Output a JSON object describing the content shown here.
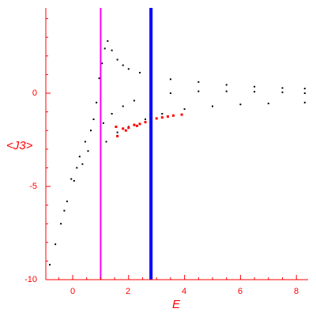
{
  "chart_data": {
    "type": "scatter",
    "xlabel": "E",
    "ylabel": "<J3>",
    "xlim": [
      -0.9,
      8.4
    ],
    "ylim": [
      -10,
      4.5
    ],
    "x_ticks": [
      0,
      2,
      4,
      6,
      8
    ],
    "y_ticks": [
      0,
      -5,
      -10
    ],
    "x_tick_labels": [
      "0",
      "2",
      "4",
      "6",
      "8"
    ],
    "y_tick_labels": [
      "0",
      "-5",
      "-10"
    ],
    "grid": false,
    "colors": {
      "axis": "#ff0000",
      "points": "#000000",
      "highlight": "#ff0000",
      "line_1": "#ff00ff",
      "line_2": "#0000ff"
    },
    "vertical_lines": [
      {
        "x": 1.0,
        "color": "#ff00ff"
      },
      {
        "x": 2.8,
        "color": "#0000ff"
      }
    ],
    "series": [
      {
        "color": "#000000",
        "points": [
          [
            -0.82,
            -9.2
          ],
          [
            -0.62,
            -8.1
          ],
          [
            -0.42,
            -7.0
          ],
          [
            -0.3,
            -6.3
          ],
          [
            -0.2,
            -5.8
          ],
          [
            -0.05,
            -4.6
          ],
          [
            0.05,
            -4.7
          ],
          [
            0.15,
            -4.0
          ],
          [
            0.25,
            -3.4
          ],
          [
            0.35,
            -3.8
          ],
          [
            0.45,
            -2.6
          ],
          [
            0.55,
            -3.1
          ],
          [
            0.65,
            -2.0
          ],
          [
            0.75,
            -1.4
          ],
          [
            0.85,
            -0.5
          ],
          [
            0.95,
            0.8
          ],
          [
            1.05,
            1.6
          ],
          [
            1.15,
            2.4
          ],
          [
            1.25,
            2.8
          ],
          [
            1.4,
            2.3
          ],
          [
            1.6,
            1.8
          ],
          [
            1.8,
            1.5
          ],
          [
            2.0,
            1.3
          ],
          [
            2.4,
            1.1
          ],
          [
            2.8,
            0.9
          ],
          [
            3.5,
            0.75
          ],
          [
            4.5,
            0.6
          ],
          [
            5.5,
            0.45
          ],
          [
            6.5,
            0.35
          ],
          [
            7.5,
            0.28
          ],
          [
            8.3,
            0.25
          ],
          [
            1.1,
            -1.6
          ],
          [
            1.4,
            -1.1
          ],
          [
            1.8,
            -0.7
          ],
          [
            2.2,
            -0.4
          ],
          [
            2.8,
            -0.15
          ],
          [
            3.5,
            0.0
          ],
          [
            4.5,
            0.1
          ],
          [
            5.5,
            0.1
          ],
          [
            6.5,
            0.08
          ],
          [
            7.5,
            0.05
          ],
          [
            8.3,
            0.0
          ],
          [
            1.2,
            -2.6
          ],
          [
            1.6,
            -2.1
          ],
          [
            2.0,
            -1.8
          ],
          [
            2.6,
            -1.4
          ],
          [
            3.2,
            -1.1
          ],
          [
            4.0,
            -0.85
          ],
          [
            5.0,
            -0.7
          ],
          [
            6.0,
            -0.6
          ],
          [
            7.0,
            -0.55
          ],
          [
            8.3,
            -0.5
          ]
        ]
      },
      {
        "color": "#ff0000",
        "points": [
          [
            1.55,
            -1.8
          ],
          [
            1.8,
            -1.9
          ],
          [
            2.0,
            -1.85
          ],
          [
            2.2,
            -1.7
          ],
          [
            2.4,
            -1.65
          ],
          [
            2.6,
            -1.55
          ],
          [
            2.8,
            -1.45
          ],
          [
            3.0,
            -1.35
          ],
          [
            3.2,
            -1.3
          ],
          [
            3.4,
            -1.25
          ],
          [
            3.6,
            -1.2
          ],
          [
            3.9,
            -1.15
          ],
          [
            1.6,
            -2.3
          ],
          [
            1.9,
            -2.0
          ],
          [
            2.3,
            -1.75
          ]
        ]
      }
    ]
  }
}
